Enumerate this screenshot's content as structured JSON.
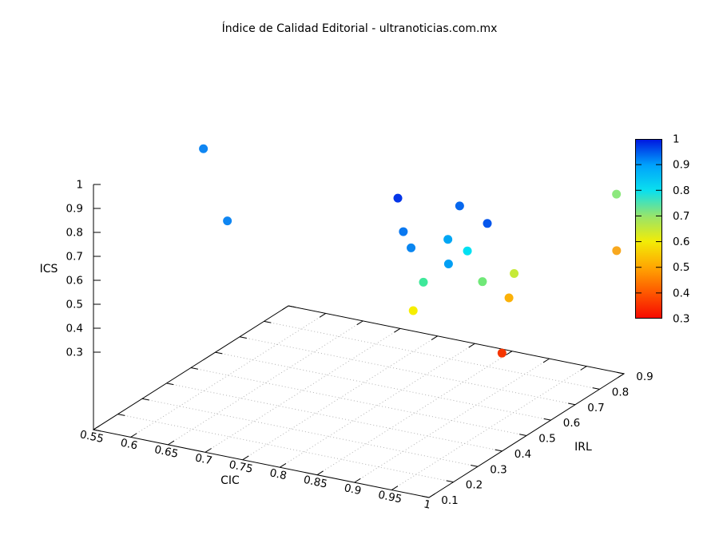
{
  "title": "Índice de Calidad Editorial - ultranoticias.com.mx",
  "chart_data": {
    "type": "scatter",
    "projection": "3d",
    "title": "Índice de Calidad Editorial - ultranoticias.com.mx",
    "xlabel": "CIC",
    "ylabel": "IRL",
    "zlabel": "ICS",
    "x_range": [
      0.55,
      1
    ],
    "y_range": [
      0.1,
      0.9
    ],
    "z_tick_range": [
      0.3,
      1
    ],
    "x_ticks": [
      "0.55",
      "0.6",
      "0.65",
      "0.7",
      "0.75",
      "0.8",
      "0.85",
      "0.9",
      "0.95",
      "1"
    ],
    "y_ticks": [
      "0.1",
      "0.2",
      "0.3",
      "0.4",
      "0.5",
      "0.6",
      "0.7",
      "0.8",
      "0.9"
    ],
    "z_ticks": [
      "0.3",
      "0.4",
      "0.5",
      "0.6",
      "0.7",
      "0.8",
      "0.9",
      "1"
    ],
    "grid": "dotted base-plane grid at interior x and y ticks",
    "legend_position": "vertical colorbar at right",
    "colorbar": {
      "range": [
        0.3,
        1
      ],
      "tick_labels_top_to_bottom": [
        "1",
        "0.9",
        "0.8",
        "0.7",
        "0.6",
        "0.5",
        "0.4",
        "0.3"
      ],
      "gradient_stops_top_to_bottom": [
        "#0018e0",
        "#00a2fc",
        "#0ae0ee",
        "#97e46b",
        "#f2ec07",
        "#ffa702",
        "#fe5800",
        "#f60b00"
      ]
    },
    "points": [
      {
        "cic": 0.57,
        "irl": 0.49,
        "ics": 0.91,
        "color": "#0f86f2"
      },
      {
        "cic": 0.71,
        "irl": 0.16,
        "ics": 0.91,
        "color": "#0f86f2"
      },
      {
        "cic": 0.87,
        "irl": 0.37,
        "ics": 0.97,
        "color": "#0435e8"
      },
      {
        "cic": 0.93,
        "irl": 0.44,
        "ics": 0.93,
        "color": "#0667ee"
      },
      {
        "cic": 0.99,
        "irl": 0.37,
        "ics": 0.94,
        "color": "#0556ec"
      },
      {
        "cic": 0.91,
        "irl": 0.27,
        "ics": 0.92,
        "color": "#0a78f0"
      },
      {
        "cic": 0.96,
        "irl": 0.3,
        "ics": 0.9,
        "color": "#00a6f4"
      },
      {
        "cic": 0.94,
        "irl": 0.21,
        "ics": 0.91,
        "color": "#0a86f0"
      },
      {
        "cic": 0.96,
        "irl": 0.38,
        "ics": 0.8,
        "color": "#00e0f2"
      },
      {
        "cic": 1.0,
        "irl": 0.18,
        "ics": 0.9,
        "color": "#009ff4"
      },
      {
        "cic": 0.99,
        "irl": 0.48,
        "ics": 0.66,
        "color": "#c6ea38"
      },
      {
        "cic": 0.95,
        "irl": 0.23,
        "ics": 0.76,
        "color": "#3ee89a"
      },
      {
        "cic": 0.99,
        "irl": 0.35,
        "ics": 0.71,
        "color": "#70e878"
      },
      {
        "cic": 0.97,
        "irl": 0.52,
        "ics": 0.52,
        "color": "#fbb108"
      },
      {
        "cic": 0.92,
        "irl": 0.28,
        "ics": 0.59,
        "color": "#f6ee00"
      },
      {
        "cic": 0.99,
        "irl": 0.43,
        "ics": 0.36,
        "color": "#f53500"
      },
      {
        "cic": 0.99,
        "irl": 0.9,
        "ics": 0.72,
        "color": "#8ce87d"
      },
      {
        "cic": 1.0,
        "irl": 0.87,
        "ics": 0.51,
        "color": "#f8a81e"
      }
    ]
  }
}
